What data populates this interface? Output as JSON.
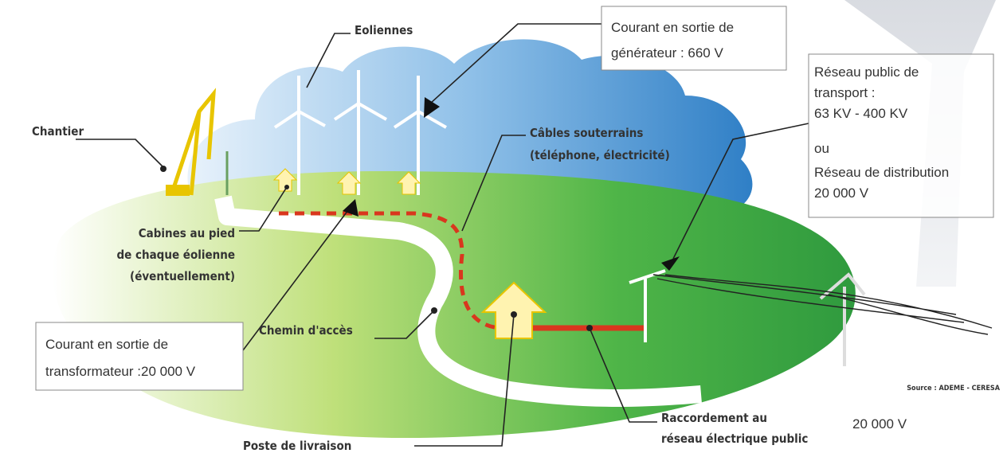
{
  "labels": {
    "eoliennes": "Eoliennes",
    "chantier": "Chantier",
    "cables": [
      "Câbles souterrains",
      "(téléphone, électricité)"
    ],
    "cabines": [
      "Cabines au pied",
      "de chaque éolienne",
      "(éventuellement)"
    ],
    "chemin": "Chemin d'accès",
    "poste": "Poste de livraison",
    "raccordement": [
      "Raccordement au",
      "réseau électrique public"
    ],
    "source": "Source : ADEME - CERESA",
    "tension_ligne": "20 000 V"
  },
  "boxes": {
    "generateur": [
      "Courant en sortie de",
      "générateur : 660 V"
    ],
    "reseau": [
      "Réseau public de",
      "transport :",
      "63 KV - 400 KV",
      "ou",
      "Réseau de distribution",
      "20 000 V"
    ],
    "transformateur": [
      "Courant en sortie de",
      "transformateur :20 000 V"
    ]
  }
}
